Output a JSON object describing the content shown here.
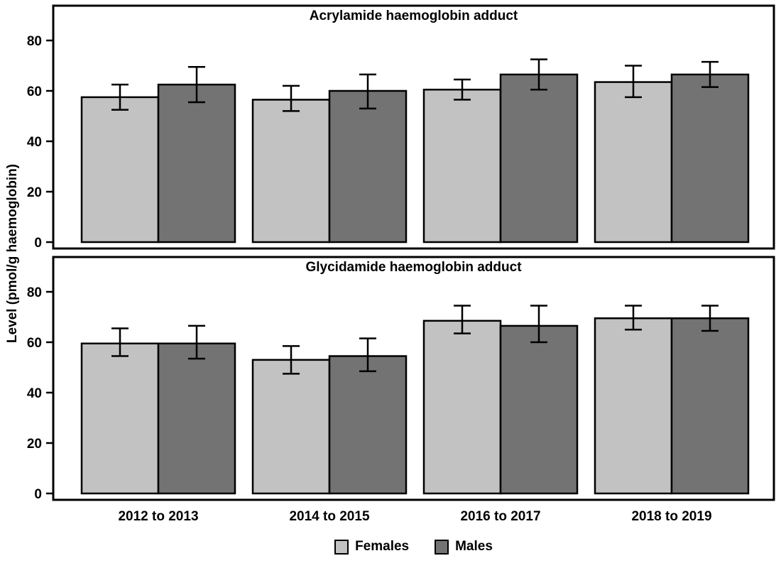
{
  "figure": {
    "ylabel": "Level (pmol/g haemoglobin)",
    "categories": [
      "2012 to 2013",
      "2014 to 2015",
      "2016 to 2017",
      "2018 to 2019"
    ],
    "legend": [
      {
        "label": "Females",
        "color": "#c2c2c2"
      },
      {
        "label": "Males",
        "color": "#737373"
      }
    ],
    "frame_color": "#000000",
    "background_color": "#ffffff"
  },
  "chart_data": [
    {
      "type": "bar",
      "title": "Acrylamide haemoglobin adduct",
      "categories": [
        "2012 to 2013",
        "2014 to 2015",
        "2016 to 2017",
        "2018 to 2019"
      ],
      "xlabel": "",
      "ylabel": "Level (pmol/g haemoglobin)",
      "ylim": [
        0,
        93
      ],
      "yticks": [
        0,
        20,
        40,
        60,
        80
      ],
      "grid": false,
      "error_bars": true,
      "legend_position": "bottom",
      "series": [
        {
          "name": "Females",
          "color": "#c2c2c2",
          "values": [
            57.5,
            56.5,
            60.5,
            63.5
          ],
          "ci_low": [
            52.5,
            52.0,
            56.5,
            57.5
          ],
          "ci_high": [
            62.5,
            62.0,
            64.5,
            70.0
          ]
        },
        {
          "name": "Males",
          "color": "#737373",
          "values": [
            62.5,
            60.0,
            66.5,
            66.5
          ],
          "ci_low": [
            55.5,
            53.0,
            60.5,
            61.5
          ],
          "ci_high": [
            69.5,
            66.5,
            72.5,
            71.5
          ]
        }
      ]
    },
    {
      "type": "bar",
      "title": "Glycidamide haemoglobin adduct",
      "categories": [
        "2012 to 2013",
        "2014 to 2015",
        "2016 to 2017",
        "2018 to 2019"
      ],
      "xlabel": "",
      "ylabel": "Level (pmol/g haemoglobin)",
      "ylim": [
        0,
        93
      ],
      "yticks": [
        0,
        20,
        40,
        60,
        80
      ],
      "grid": false,
      "error_bars": true,
      "legend_position": "bottom",
      "series": [
        {
          "name": "Females",
          "color": "#c2c2c2",
          "values": [
            59.5,
            53.0,
            68.5,
            69.5
          ],
          "ci_low": [
            54.5,
            47.5,
            63.5,
            65.0
          ],
          "ci_high": [
            65.5,
            58.5,
            74.5,
            74.5
          ]
        },
        {
          "name": "Males",
          "color": "#737373",
          "values": [
            59.5,
            54.5,
            66.5,
            69.5
          ],
          "ci_low": [
            53.5,
            48.5,
            60.0,
            64.5
          ],
          "ci_high": [
            66.5,
            61.5,
            74.5,
            74.5
          ]
        }
      ]
    }
  ]
}
